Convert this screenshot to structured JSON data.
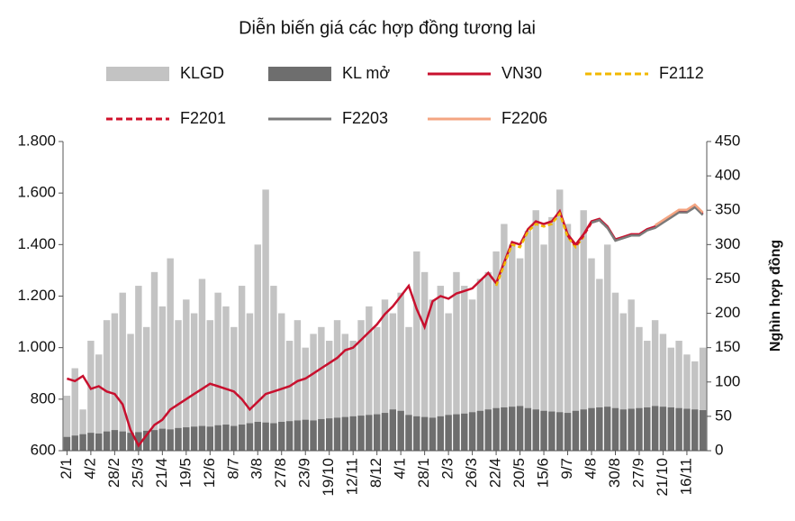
{
  "chart_data": {
    "type": "combo",
    "title": "Diễn biến giá các hợp đồng tương lai",
    "y2label": "Nghìn hợp đồng",
    "categories": [
      "2/1",
      null,
      null,
      "4/2",
      null,
      null,
      "28/2",
      null,
      null,
      "25/3",
      null,
      null,
      "21/4",
      null,
      null,
      "19/5",
      null,
      null,
      "12/6",
      null,
      null,
      "8/7",
      null,
      null,
      "3/8",
      null,
      null,
      "27/8",
      null,
      null,
      "23/9",
      null,
      null,
      "19/10",
      null,
      null,
      "12/11",
      null,
      null,
      "8/12",
      null,
      null,
      "4/1",
      null,
      null,
      "28/1",
      null,
      null,
      "2/3",
      null,
      null,
      "26/3",
      null,
      null,
      "22/4",
      null,
      null,
      "20/5",
      null,
      null,
      "15/6",
      null,
      null,
      "9/7",
      null,
      null,
      "4/8",
      null,
      null,
      "30/8",
      null,
      null,
      "27/9",
      null,
      null,
      "21/10",
      null,
      null,
      "16/11",
      null,
      null
    ],
    "ylim": [
      600,
      1800
    ],
    "yticks": [
      600,
      800,
      {
        "value": 1000,
        "label": "1.000"
      },
      {
        "value": 1200,
        "label": "1.200"
      },
      {
        "value": 1400,
        "label": "1.400"
      },
      {
        "value": 1600,
        "label": "1.600"
      },
      {
        "value": 1800,
        "label": "1.800"
      }
    ],
    "y2lim": [
      0,
      450
    ],
    "y2ticks": [
      0,
      50,
      100,
      150,
      200,
      250,
      300,
      350,
      400,
      450
    ],
    "grid": false,
    "series": [
      {
        "name": "KLGD",
        "type": "bar",
        "axis": "y2",
        "color": "#c3c3c3",
        "values": [
          80,
          120,
          60,
          160,
          140,
          190,
          200,
          230,
          170,
          240,
          180,
          260,
          210,
          280,
          190,
          220,
          200,
          250,
          190,
          230,
          210,
          180,
          240,
          200,
          300,
          380,
          240,
          200,
          160,
          190,
          150,
          170,
          180,
          160,
          190,
          170,
          160,
          190,
          210,
          180,
          220,
          200,
          230,
          180,
          290,
          260,
          220,
          240,
          200,
          260,
          240,
          220,
          250,
          260,
          290,
          330,
          300,
          280,
          320,
          350,
          300,
          340,
          380,
          330,
          300,
          350,
          280,
          250,
          300,
          230,
          200,
          220,
          180,
          160,
          190,
          170,
          150,
          160,
          140,
          130,
          150
        ]
      },
      {
        "name": "KL mở",
        "type": "bar",
        "axis": "y2",
        "color": "#6e6e6e",
        "values": [
          20,
          22,
          24,
          26,
          25,
          28,
          30,
          28,
          26,
          27,
          29,
          30,
          32,
          31,
          33,
          34,
          35,
          36,
          35,
          37,
          38,
          36,
          38,
          40,
          42,
          41,
          40,
          42,
          43,
          44,
          45,
          44,
          46,
          47,
          48,
          49,
          50,
          51,
          52,
          53,
          55,
          60,
          58,
          52,
          50,
          49,
          48,
          50,
          52,
          53,
          54,
          56,
          58,
          60,
          62,
          63,
          64,
          65,
          62,
          60,
          58,
          57,
          56,
          55,
          58,
          60,
          62,
          63,
          64,
          62,
          60,
          61,
          62,
          63,
          65,
          64,
          63,
          62,
          61,
          60,
          59
        ]
      },
      {
        "name": "VN30",
        "type": "line",
        "color": "#c8102e",
        "dash": false,
        "values": [
          880,
          870,
          890,
          840,
          850,
          830,
          820,
          780,
          680,
          620,
          660,
          700,
          720,
          760,
          780,
          800,
          820,
          840,
          860,
          850,
          840,
          830,
          800,
          760,
          790,
          820,
          830,
          840,
          850,
          870,
          880,
          900,
          920,
          940,
          960,
          990,
          1000,
          1030,
          1060,
          1090,
          1130,
          1160,
          1200,
          1240,
          1150,
          1080,
          1180,
          1200,
          1190,
          1210,
          1220,
          1230,
          1260,
          1290,
          1250,
          1330,
          1410,
          1400,
          1460,
          1490,
          1480,
          1490,
          1530,
          1440,
          1400,
          1440,
          1490,
          1500,
          1470,
          1420,
          1430,
          1440,
          1440,
          1460,
          1470,
          1490,
          1510,
          1530,
          1530,
          1550,
          1520
        ]
      },
      {
        "name": "F2112",
        "type": "line",
        "color": "#f2b800",
        "dash": true,
        "values": [
          null,
          null,
          null,
          null,
          null,
          null,
          null,
          null,
          null,
          null,
          null,
          null,
          null,
          null,
          null,
          null,
          null,
          null,
          null,
          null,
          null,
          null,
          null,
          null,
          null,
          null,
          null,
          null,
          null,
          null,
          null,
          null,
          null,
          null,
          null,
          null,
          null,
          null,
          null,
          null,
          null,
          null,
          null,
          null,
          null,
          null,
          null,
          null,
          null,
          null,
          null,
          null,
          null,
          null,
          1240,
          1320,
          1400,
          1390,
          1450,
          1480,
          1470,
          1480,
          1520,
          1430,
          1390,
          1430,
          null,
          null,
          null,
          null,
          null,
          null,
          null,
          null,
          null,
          null,
          null,
          null,
          null,
          null,
          null
        ]
      },
      {
        "name": "F2201",
        "type": "line",
        "color": "#d0112b",
        "dash": true,
        "values": [
          null,
          null,
          null,
          null,
          null,
          null,
          null,
          null,
          null,
          null,
          null,
          null,
          null,
          null,
          null,
          null,
          null,
          null,
          null,
          null,
          null,
          null,
          null,
          null,
          null,
          null,
          null,
          null,
          null,
          null,
          null,
          null,
          null,
          null,
          null,
          null,
          null,
          null,
          null,
          null,
          null,
          null,
          null,
          null,
          null,
          null,
          null,
          null,
          null,
          null,
          null,
          null,
          null,
          null,
          null,
          null,
          null,
          null,
          null,
          null,
          null,
          null,
          null,
          1435,
          1395,
          1435,
          1485,
          1495,
          1465,
          null,
          null,
          null,
          null,
          null,
          null,
          null,
          null,
          null,
          null,
          null,
          null
        ]
      },
      {
        "name": "F2203",
        "type": "line",
        "color": "#7a7a7a",
        "dash": false,
        "values": [
          null,
          null,
          null,
          null,
          null,
          null,
          null,
          null,
          null,
          null,
          null,
          null,
          null,
          null,
          null,
          null,
          null,
          null,
          null,
          null,
          null,
          null,
          null,
          null,
          null,
          null,
          null,
          null,
          null,
          null,
          null,
          null,
          null,
          null,
          null,
          null,
          null,
          null,
          null,
          null,
          null,
          null,
          null,
          null,
          null,
          null,
          null,
          null,
          null,
          null,
          null,
          null,
          null,
          null,
          null,
          null,
          null,
          null,
          null,
          null,
          null,
          null,
          null,
          null,
          null,
          null,
          1485,
          1495,
          1465,
          1415,
          1425,
          1435,
          1435,
          1455,
          1465,
          1485,
          1505,
          1525,
          1525,
          1545,
          1515
        ]
      },
      {
        "name": "F2206",
        "type": "line",
        "color": "#f4a582",
        "dash": false,
        "values": [
          null,
          null,
          null,
          null,
          null,
          null,
          null,
          null,
          null,
          null,
          null,
          null,
          null,
          null,
          null,
          null,
          null,
          null,
          null,
          null,
          null,
          null,
          null,
          null,
          null,
          null,
          null,
          null,
          null,
          null,
          null,
          null,
          null,
          null,
          null,
          null,
          null,
          null,
          null,
          null,
          null,
          null,
          null,
          null,
          null,
          null,
          null,
          null,
          null,
          null,
          null,
          null,
          null,
          null,
          null,
          null,
          null,
          null,
          null,
          null,
          null,
          null,
          null,
          null,
          null,
          null,
          null,
          null,
          null,
          null,
          null,
          null,
          null,
          null,
          1475,
          1495,
          1515,
          1535,
          1535,
          1555,
          1525
        ]
      }
    ]
  }
}
